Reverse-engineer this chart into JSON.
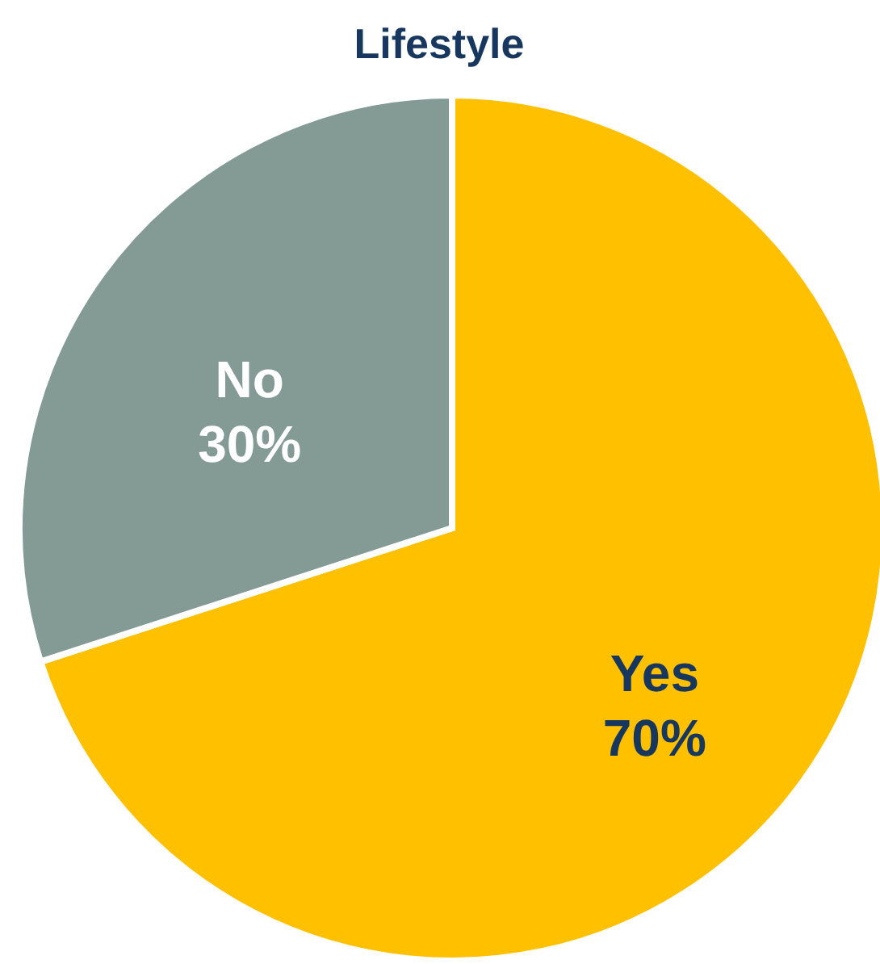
{
  "chart_data": {
    "type": "pie",
    "title": "Lifestyle",
    "categories": [
      "Yes",
      "No"
    ],
    "values": [
      70,
      30
    ],
    "value_labels": [
      "70%",
      "30%"
    ],
    "colors": [
      "#ffc000",
      "#849a94"
    ]
  }
}
